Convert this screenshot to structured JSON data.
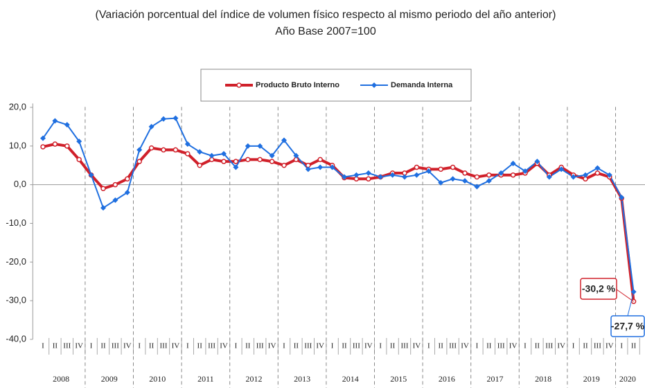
{
  "chart_data": {
    "type": "line",
    "title": "(Variación porcentual del índice de volumen físico respecto al mismo periodo del año anterior)",
    "subtitle": "Año Base 2007=100",
    "categories": [
      "I",
      "II",
      "III",
      "IV",
      "I",
      "II",
      "III",
      "IV",
      "I",
      "II",
      "III",
      "IV",
      "I",
      "II",
      "III",
      "IV",
      "I",
      "II",
      "III",
      "IV",
      "I",
      "II",
      "III",
      "IV",
      "I",
      "II",
      "III",
      "IV",
      "I",
      "II",
      "III",
      "IV",
      "I",
      "II",
      "III",
      "IV",
      "I",
      "II",
      "III",
      "IV",
      "I",
      "II",
      "III",
      "IV",
      "I",
      "II",
      "III",
      "IV",
      "I",
      "II"
    ],
    "years": [
      "2008",
      "2009",
      "2010",
      "2011",
      "2012",
      "2013",
      "2014",
      "2015",
      "2016",
      "2017",
      "2018",
      "2019",
      "2020"
    ],
    "series": [
      {
        "name": "Producto Bruto Interno",
        "color": "#d0202a",
        "marker": "circle",
        "end_label": "-30,2 %",
        "values": [
          9.8,
          10.5,
          10.0,
          6.5,
          2.5,
          -1.0,
          0.0,
          1.5,
          6.0,
          9.5,
          9.0,
          9.0,
          8.0,
          5.0,
          6.5,
          6.0,
          6.0,
          6.5,
          6.5,
          6.0,
          5.0,
          6.5,
          5.0,
          6.5,
          5.0,
          1.8,
          1.5,
          1.5,
          2.0,
          3.0,
          3.0,
          4.5,
          4.0,
          4.0,
          4.5,
          3.0,
          2.0,
          2.5,
          2.5,
          2.5,
          3.0,
          5.5,
          2.5,
          4.5,
          2.5,
          1.5,
          3.0,
          2.0,
          -3.5,
          -30.2
        ]
      },
      {
        "name": "Demanda Interna",
        "color": "#1f6fe0",
        "marker": "diamond",
        "end_label": "-27,7 %",
        "values": [
          12.0,
          16.5,
          15.5,
          11.2,
          2.5,
          -6.0,
          -4.0,
          -2.0,
          9.0,
          15.0,
          17.0,
          17.2,
          10.5,
          8.5,
          7.5,
          8.0,
          4.5,
          10.0,
          10.0,
          7.5,
          11.5,
          7.5,
          4.0,
          4.5,
          4.5,
          2.0,
          2.5,
          3.0,
          2.0,
          2.5,
          2.0,
          2.5,
          3.5,
          0.5,
          1.5,
          1.0,
          -0.5,
          1.0,
          3.0,
          5.5,
          3.5,
          6.0,
          2.0,
          4.0,
          2.0,
          2.5,
          4.3,
          2.5,
          -3.3,
          -27.7
        ]
      }
    ],
    "ylim": [
      -40,
      21
    ],
    "yticks": [
      {
        "value": 20,
        "label": "20,0"
      },
      {
        "value": 10,
        "label": "10,0"
      },
      {
        "value": 0,
        "label": "0,0"
      },
      {
        "value": -10,
        "label": "-10,0"
      },
      {
        "value": -20,
        "label": "-20,0"
      },
      {
        "value": -30,
        "label": "-30,0"
      },
      {
        "value": -40,
        "label": "-40,0"
      }
    ]
  }
}
